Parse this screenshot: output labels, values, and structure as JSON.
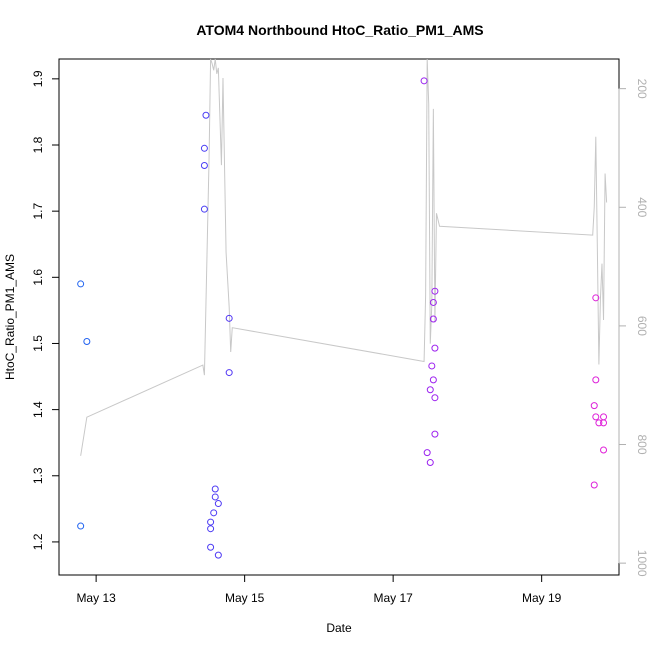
{
  "chart_data": {
    "type": "scatter",
    "title": "ATOM4 Northbound HtoC_Ratio_PM1_AMS",
    "xlabel": "Date",
    "ylabel": "HtoC_Ratio_PM1_AMS",
    "x_ticks": [
      "May 13",
      "May 15",
      "May 17",
      "May 19"
    ],
    "y_ticks": [
      "1.2",
      "1.3",
      "1.4",
      "1.5",
      "1.6",
      "1.7",
      "1.8",
      "1.9"
    ],
    "y2_ticks": [
      "200",
      "400",
      "600",
      "800",
      "1000"
    ],
    "xlim": [
      "2021-05-12T12:00",
      "2021-05-20T01:00"
    ],
    "ylim": [
      1.15,
      1.93
    ],
    "y2lim_top_to_bottom": [
      150,
      1020
    ],
    "y2_reversed": true,
    "point_color_gradient": [
      "#1f63f0",
      "#5a2ef5",
      "#9b22f0",
      "#e020d8"
    ],
    "line_color": "#c8c8c8",
    "series": [
      {
        "type": "scatter",
        "marker": "open-circle",
        "points": [
          [
            "2021-05-12T19:00",
            1.59
          ],
          [
            "2021-05-12T19:00",
            1.224
          ],
          [
            "2021-05-12T21:00",
            1.503
          ],
          [
            "2021-05-14T11:30",
            1.845
          ],
          [
            "2021-05-14T11:00",
            1.795
          ],
          [
            "2021-05-14T11:00",
            1.769
          ],
          [
            "2021-05-14T11:00",
            1.703
          ],
          [
            "2021-05-14T13:00",
            1.23
          ],
          [
            "2021-05-14T13:00",
            1.22
          ],
          [
            "2021-05-14T13:00",
            1.192
          ],
          [
            "2021-05-14T14:00",
            1.244
          ],
          [
            "2021-05-14T14:30",
            1.28
          ],
          [
            "2021-05-14T14:30",
            1.268
          ],
          [
            "2021-05-14T15:30",
            1.258
          ],
          [
            "2021-05-14T15:30",
            1.18
          ],
          [
            "2021-05-14T19:00",
            1.538
          ],
          [
            "2021-05-14T19:00",
            1.456
          ],
          [
            "2021-05-17T10:00",
            1.897
          ],
          [
            "2021-05-17T11:00",
            1.335
          ],
          [
            "2021-05-17T12:00",
            1.32
          ],
          [
            "2021-05-17T12:00",
            1.43
          ],
          [
            "2021-05-17T12:30",
            1.466
          ],
          [
            "2021-05-17T13:00",
            1.445
          ],
          [
            "2021-05-17T13:00",
            1.537
          ],
          [
            "2021-05-17T13:00",
            1.562
          ],
          [
            "2021-05-17T13:30",
            1.579
          ],
          [
            "2021-05-17T13:30",
            1.493
          ],
          [
            "2021-05-17T13:30",
            1.418
          ],
          [
            "2021-05-17T13:30",
            1.363
          ],
          [
            "2021-05-19T17:30",
            1.569
          ],
          [
            "2021-05-19T17:30",
            1.445
          ],
          [
            "2021-05-19T17:00",
            1.406
          ],
          [
            "2021-05-19T17:30",
            1.389
          ],
          [
            "2021-05-19T17:00",
            1.286
          ],
          [
            "2021-05-19T18:30",
            1.38
          ],
          [
            "2021-05-19T20:00",
            1.389
          ],
          [
            "2021-05-19T20:00",
            1.38
          ],
          [
            "2021-05-19T20:00",
            1.339
          ]
        ]
      },
      {
        "type": "line",
        "axis": "right",
        "points": [
          [
            "2021-05-12T19:00",
            819
          ],
          [
            "2021-05-12T21:00",
            754
          ],
          [
            "2021-05-14T10:30",
            666
          ],
          [
            "2021-05-14T11:00",
            683
          ],
          [
            "2021-05-14T11:30",
            562
          ],
          [
            "2021-05-14T12:30",
            318
          ],
          [
            "2021-05-14T13:00",
            150
          ],
          [
            "2021-05-14T13:30",
            158
          ],
          [
            "2021-05-14T14:00",
            169
          ],
          [
            "2021-05-14T14:30",
            150
          ],
          [
            "2021-05-14T15:00",
            175
          ],
          [
            "2021-05-14T15:30",
            165
          ],
          [
            "2021-05-14T16:30",
            329
          ],
          [
            "2021-05-14T17:00",
            182
          ],
          [
            "2021-05-14T18:00",
            476
          ],
          [
            "2021-05-14T19:00",
            568
          ],
          [
            "2021-05-14T19:30",
            644
          ],
          [
            "2021-05-14T20:00",
            603
          ],
          [
            "2021-05-17T10:00",
            660
          ],
          [
            "2021-05-17T10:30",
            548
          ],
          [
            "2021-05-17T11:00",
            150
          ],
          [
            "2021-05-17T11:30",
            226
          ],
          [
            "2021-05-17T12:00",
            630
          ],
          [
            "2021-05-17T12:30",
            564
          ],
          [
            "2021-05-17T13:00",
            234
          ],
          [
            "2021-05-17T13:30",
            594
          ],
          [
            "2021-05-17T14:00",
            410
          ],
          [
            "2021-05-17T15:00",
            432
          ],
          [
            "2021-05-19T16:30",
            447
          ],
          [
            "2021-05-19T17:00",
            400
          ],
          [
            "2021-05-19T17:30",
            281
          ],
          [
            "2021-05-19T18:00",
            468
          ],
          [
            "2021-05-19T18:30",
            665
          ],
          [
            "2021-05-19T19:00",
            554
          ],
          [
            "2021-05-19T19:30",
            495
          ],
          [
            "2021-05-19T20:00",
            590
          ],
          [
            "2021-05-19T20:30",
            343
          ],
          [
            "2021-05-19T21:00",
            392
          ]
        ]
      }
    ]
  }
}
